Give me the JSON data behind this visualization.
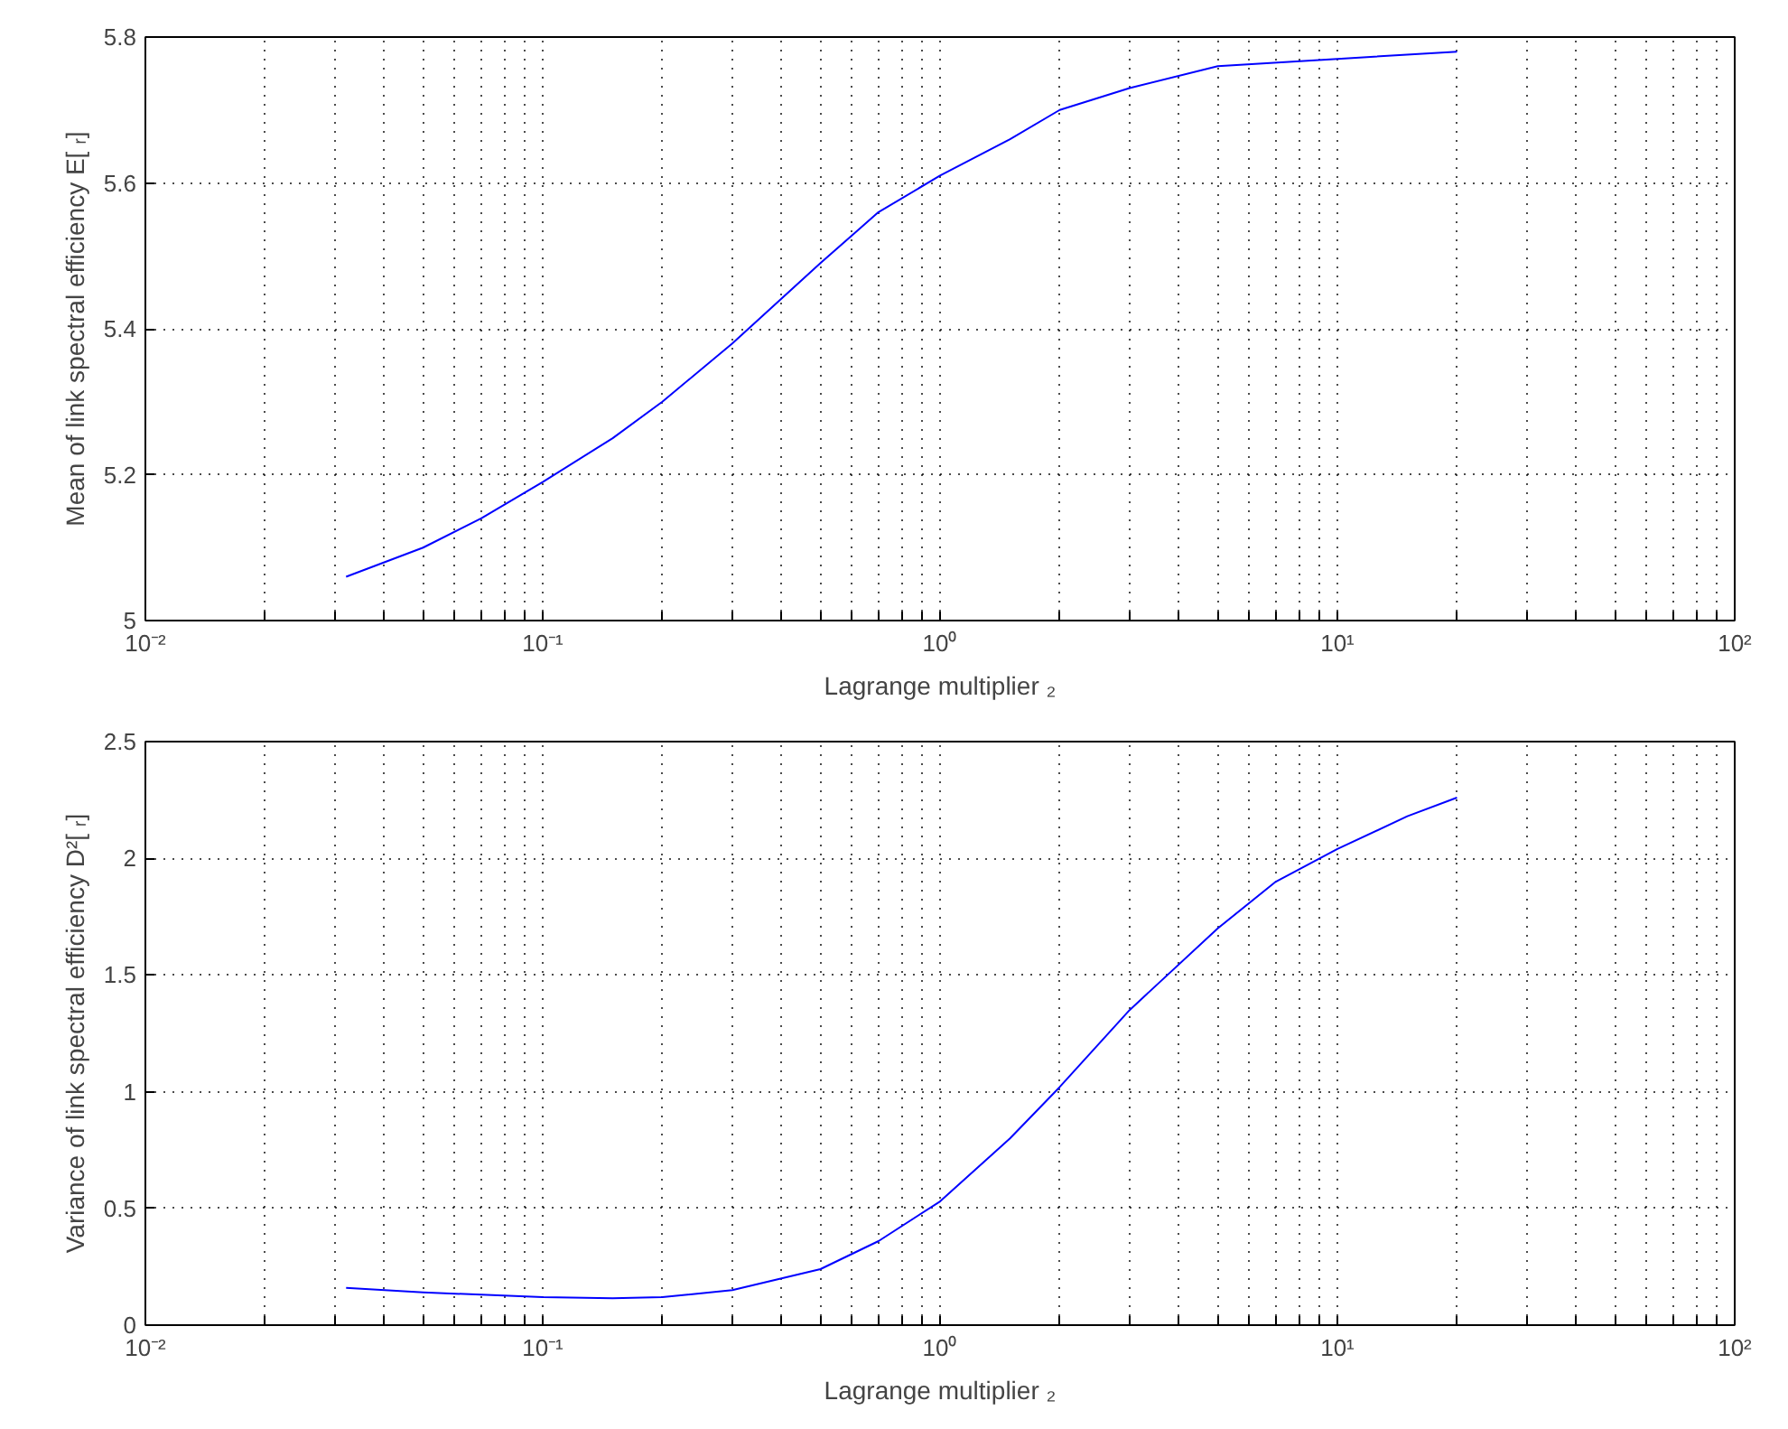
{
  "chart_data": [
    {
      "type": "line",
      "xlabel": "Lagrange multiplier ₂",
      "ylabel": "Mean of link spectral efficiency E[ ᵣ]",
      "log": "x",
      "grid": true,
      "x": [
        0.032,
        0.05,
        0.07,
        0.1,
        0.15,
        0.2,
        0.3,
        0.5,
        0.7,
        1,
        1.5,
        2,
        3,
        5,
        10,
        20
      ],
      "series": [
        {
          "color": "#0000ff",
          "values": [
            5.06,
            5.1,
            5.14,
            5.19,
            5.25,
            5.3,
            5.38,
            5.49,
            5.56,
            5.61,
            5.66,
            5.7,
            5.73,
            5.76,
            5.77,
            5.78
          ]
        }
      ],
      "xlim": [
        0.01,
        100
      ],
      "ylim": [
        5,
        5.8
      ],
      "xticks": [
        {
          "value": 0.01,
          "label": "10⁻²"
        },
        {
          "value": 0.02,
          "label": null
        },
        {
          "value": 0.03,
          "label": null
        },
        {
          "value": 0.04,
          "label": null
        },
        {
          "value": 0.05,
          "label": null
        },
        {
          "value": 0.06,
          "label": null
        },
        {
          "value": 0.07,
          "label": null
        },
        {
          "value": 0.08,
          "label": null
        },
        {
          "value": 0.09,
          "label": null
        },
        {
          "value": 0.1,
          "label": "10⁻¹"
        },
        {
          "value": 0.2,
          "label": null
        },
        {
          "value": 0.3,
          "label": null
        },
        {
          "value": 0.4,
          "label": null
        },
        {
          "value": 0.5,
          "label": null
        },
        {
          "value": 0.6,
          "label": null
        },
        {
          "value": 0.7,
          "label": null
        },
        {
          "value": 0.8,
          "label": null
        },
        {
          "value": 0.9,
          "label": null
        },
        {
          "value": 1,
          "label": "10⁰"
        },
        {
          "value": 2,
          "label": null
        },
        {
          "value": 3,
          "label": null
        },
        {
          "value": 4,
          "label": null
        },
        {
          "value": 5,
          "label": null
        },
        {
          "value": 6,
          "label": null
        },
        {
          "value": 7,
          "label": null
        },
        {
          "value": 8,
          "label": null
        },
        {
          "value": 9,
          "label": null
        },
        {
          "value": 10,
          "label": "10¹"
        },
        {
          "value": 20,
          "label": null
        },
        {
          "value": 30,
          "label": null
        },
        {
          "value": 40,
          "label": null
        },
        {
          "value": 50,
          "label": null
        },
        {
          "value": 60,
          "label": null
        },
        {
          "value": 70,
          "label": null
        },
        {
          "value": 80,
          "label": null
        },
        {
          "value": 90,
          "label": null
        },
        {
          "value": 100,
          "label": "10²"
        }
      ],
      "yticks": [
        5,
        5.2,
        5.4,
        5.6,
        5.8
      ]
    },
    {
      "type": "line",
      "xlabel": "Lagrange multiplier ₂",
      "ylabel": "Variance of link spectral efficiency D²[ ᵣ]",
      "log": "x",
      "grid": true,
      "x": [
        0.032,
        0.05,
        0.1,
        0.15,
        0.2,
        0.3,
        0.5,
        0.7,
        1,
        1.5,
        2,
        3,
        5,
        7,
        10,
        15,
        20
      ],
      "series": [
        {
          "color": "#0000ff",
          "values": [
            0.16,
            0.14,
            0.12,
            0.115,
            0.12,
            0.15,
            0.24,
            0.36,
            0.53,
            0.8,
            1.02,
            1.35,
            1.7,
            1.9,
            2.04,
            2.18,
            2.26
          ]
        }
      ],
      "xlim": [
        0.01,
        100
      ],
      "ylim": [
        0,
        2.5
      ],
      "xticks": [
        {
          "value": 0.01,
          "label": "10⁻²"
        },
        {
          "value": 0.02,
          "label": null
        },
        {
          "value": 0.03,
          "label": null
        },
        {
          "value": 0.04,
          "label": null
        },
        {
          "value": 0.05,
          "label": null
        },
        {
          "value": 0.06,
          "label": null
        },
        {
          "value": 0.07,
          "label": null
        },
        {
          "value": 0.08,
          "label": null
        },
        {
          "value": 0.09,
          "label": null
        },
        {
          "value": 0.1,
          "label": "10⁻¹"
        },
        {
          "value": 0.2,
          "label": null
        },
        {
          "value": 0.3,
          "label": null
        },
        {
          "value": 0.4,
          "label": null
        },
        {
          "value": 0.5,
          "label": null
        },
        {
          "value": 0.6,
          "label": null
        },
        {
          "value": 0.7,
          "label": null
        },
        {
          "value": 0.8,
          "label": null
        },
        {
          "value": 0.9,
          "label": null
        },
        {
          "value": 1,
          "label": "10⁰"
        },
        {
          "value": 2,
          "label": null
        },
        {
          "value": 3,
          "label": null
        },
        {
          "value": 4,
          "label": null
        },
        {
          "value": 5,
          "label": null
        },
        {
          "value": 6,
          "label": null
        },
        {
          "value": 7,
          "label": null
        },
        {
          "value": 8,
          "label": null
        },
        {
          "value": 9,
          "label": null
        },
        {
          "value": 10,
          "label": "10¹"
        },
        {
          "value": 20,
          "label": null
        },
        {
          "value": 30,
          "label": null
        },
        {
          "value": 40,
          "label": null
        },
        {
          "value": 50,
          "label": null
        },
        {
          "value": 60,
          "label": null
        },
        {
          "value": 70,
          "label": null
        },
        {
          "value": 80,
          "label": null
        },
        {
          "value": 90,
          "label": null
        },
        {
          "value": 100,
          "label": "10²"
        }
      ],
      "yticks": [
        0,
        0.5,
        1,
        1.5,
        2,
        2.5
      ]
    }
  ]
}
